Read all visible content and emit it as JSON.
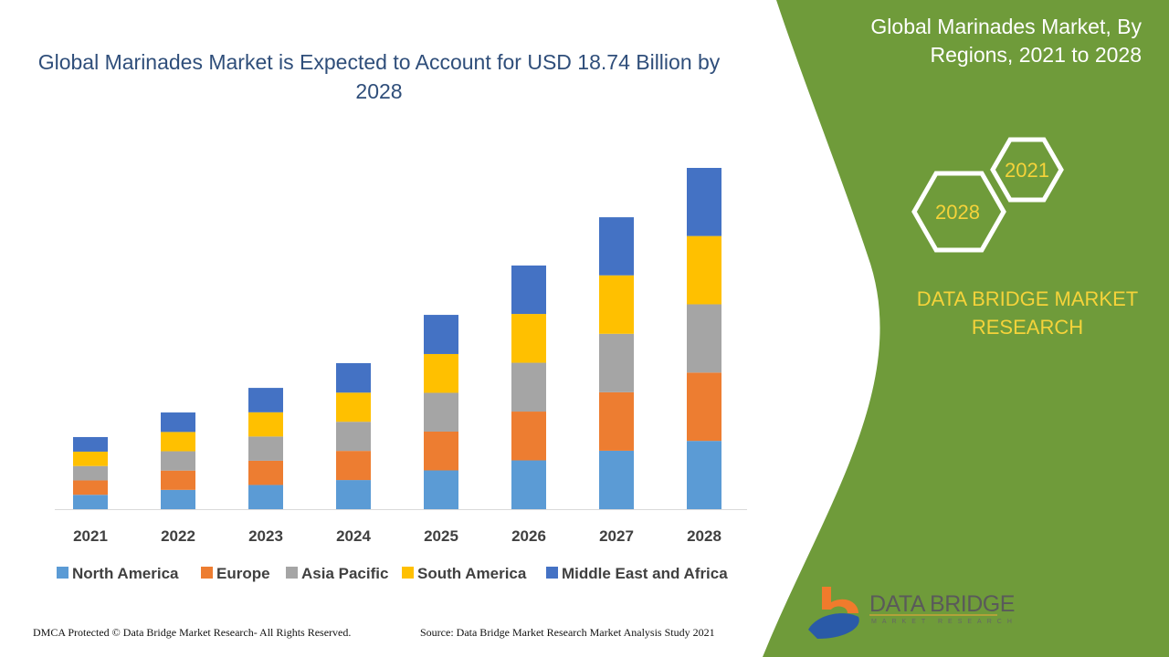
{
  "header": {
    "title": "Global Marinades Market is Expected to Account for USD 18.74 Billion by 2028"
  },
  "side_panel": {
    "title": "Global Marinades Market, By Regions, 2021 to 2028",
    "hex_years": [
      "2021",
      "2028"
    ],
    "brand": "DATA BRIDGE MARKET RESEARCH",
    "logo_text": "DATA BRIDGE",
    "logo_sub": "MARKET RESEARCH"
  },
  "footer": {
    "left": "DMCA Protected © Data Bridge Market Research- All Rights Reserved.",
    "right": "Source: Data Bridge Market Research Market Analysis Study 2021"
  },
  "colors": {
    "panel_green": "#6f9b3a",
    "title_blue": "#2f4e7a",
    "accent_yellow": "#f5d33a"
  },
  "chart_data": {
    "type": "bar",
    "stacked": true,
    "title": "Global Marinades Market is Expected to Account for USD 18.74 Billion by 2028",
    "categories": [
      "2021",
      "2022",
      "2023",
      "2024",
      "2025",
      "2026",
      "2027",
      "2028"
    ],
    "series": [
      {
        "name": "North America",
        "color": "#5b9bd5",
        "values": [
          0.79,
          1.06,
          1.33,
          1.6,
          2.13,
          2.68,
          3.21,
          3.75
        ]
      },
      {
        "name": "Europe",
        "color": "#ed7d31",
        "values": [
          0.79,
          1.06,
          1.33,
          1.6,
          2.13,
          2.68,
          3.21,
          3.75
        ]
      },
      {
        "name": "Asia Pacific",
        "color": "#a5a5a5",
        "values": [
          0.79,
          1.06,
          1.33,
          1.6,
          2.13,
          2.68,
          3.21,
          3.75
        ]
      },
      {
        "name": "South America",
        "color": "#ffc000",
        "values": [
          0.79,
          1.06,
          1.33,
          1.6,
          2.13,
          2.68,
          3.21,
          3.75
        ]
      },
      {
        "name": "Middle East and Africa",
        "color": "#4472c4",
        "values": [
          0.8,
          1.07,
          1.34,
          1.62,
          2.15,
          2.66,
          3.19,
          3.74
        ]
      }
    ],
    "ylim": [
      0,
      18.74
    ],
    "grid": false,
    "legend": "bottom"
  }
}
